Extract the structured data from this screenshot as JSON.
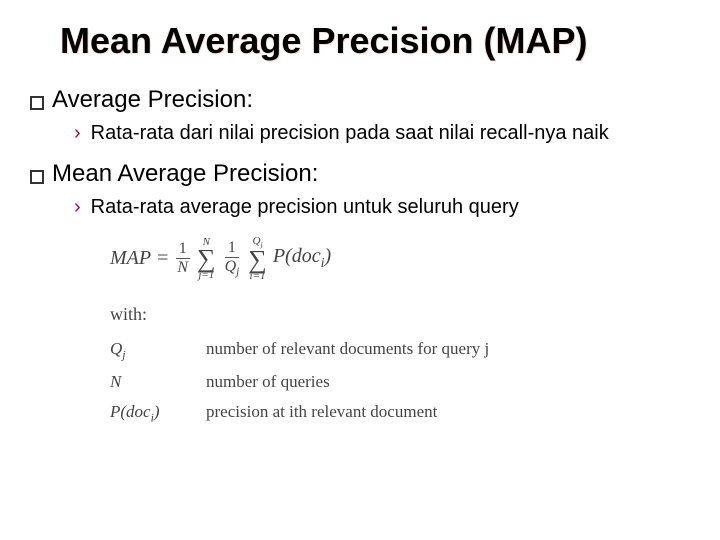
{
  "title": "Mean Average Precision (MAP)",
  "items": [
    {
      "heading": "Average Precision:",
      "sub": "Rata-rata dari nilai precision pada saat nilai recall-nya naik"
    },
    {
      "heading": "Mean Average Precision:",
      "sub": "Rata-rata average precision untuk seluruh query"
    }
  ],
  "formula": {
    "lhs": "MAP",
    "eq": "=",
    "frac1_num": "1",
    "frac1_den": "N",
    "sum1_upper": "N",
    "sum1_lower": "j=1",
    "frac2_num": "1",
    "frac2_den_sym": "Q",
    "frac2_den_sub": "j",
    "sum2_upper_sym": "Q",
    "sum2_upper_sub": "j",
    "sum2_lower": "i=1",
    "p_func": "P",
    "p_arg": "doc",
    "p_arg_sub": "i"
  },
  "with_label": "with:",
  "definitions": [
    {
      "sym_main": "Q",
      "sym_sub": "j",
      "desc_pre": "number of relevant documents for query ",
      "desc_var": "j"
    },
    {
      "sym_main": "N",
      "sym_sub": "",
      "desc_pre": "number of queries",
      "desc_var": ""
    },
    {
      "sym_main": "P(doc",
      "sym_sub": "i",
      "sym_post": ")",
      "desc_pre": "precision at ",
      "desc_var": "i",
      "desc_post": "th relevant document"
    }
  ],
  "colors": {
    "accent": "#c00040",
    "text": "#000000",
    "formula_text": "#444444",
    "background": "#ffffff"
  },
  "typography": {
    "title_fontsize": 36,
    "bullet_fontsize": 24,
    "sub_fontsize": 20,
    "formula_fontsize": 20,
    "defs_fontsize": 17
  }
}
